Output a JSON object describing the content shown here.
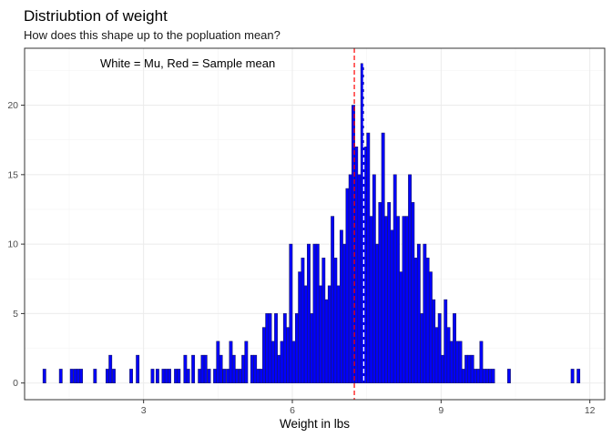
{
  "colors": {
    "bar_fill": "#0000ff",
    "bar_outline": "#1a1a66",
    "sample_mean_line": "#ff0000",
    "mu_line": "#ffffff"
  },
  "chart_data": {
    "type": "bar",
    "title": "Distriubtion of weight",
    "subtitle": "How does this shape up to the popluation mean?",
    "xlabel": "Weight in lbs",
    "ylabel": "",
    "annotation": "White = Mu, Red = Sample mean",
    "xlim": [
      0.6,
      12.3
    ],
    "ylim": [
      -1.2,
      24.1
    ],
    "x_ticks": [
      3,
      6,
      9,
      12
    ],
    "y_ticks": [
      0,
      5,
      10,
      15,
      20
    ],
    "grid": true,
    "binwidth": 0.06,
    "sample_mean": 7.25,
    "mu": 7.44,
    "bins": [
      [
        1.0,
        1
      ],
      [
        1.33,
        1
      ],
      [
        1.55,
        1
      ],
      [
        1.62,
        1
      ],
      [
        1.68,
        1
      ],
      [
        1.74,
        1
      ],
      [
        2.02,
        1
      ],
      [
        2.27,
        1
      ],
      [
        2.33,
        2
      ],
      [
        2.4,
        1
      ],
      [
        2.75,
        1
      ],
      [
        2.88,
        2
      ],
      [
        3.18,
        1
      ],
      [
        3.28,
        1
      ],
      [
        3.4,
        1
      ],
      [
        3.46,
        1
      ],
      [
        3.52,
        1
      ],
      [
        3.65,
        1
      ],
      [
        3.71,
        1
      ],
      [
        3.84,
        2
      ],
      [
        3.9,
        1
      ],
      [
        4.0,
        2
      ],
      [
        4.13,
        1
      ],
      [
        4.19,
        2
      ],
      [
        4.25,
        2
      ],
      [
        4.32,
        1
      ],
      [
        4.44,
        1
      ],
      [
        4.5,
        3
      ],
      [
        4.56,
        2
      ],
      [
        4.63,
        1
      ],
      [
        4.7,
        1
      ],
      [
        4.76,
        3
      ],
      [
        4.82,
        2
      ],
      [
        4.88,
        1
      ],
      [
        4.95,
        1
      ],
      [
        5.01,
        2
      ],
      [
        5.07,
        3
      ],
      [
        5.19,
        2
      ],
      [
        5.25,
        2
      ],
      [
        5.31,
        1
      ],
      [
        5.37,
        1
      ],
      [
        5.43,
        4
      ],
      [
        5.49,
        5
      ],
      [
        5.55,
        5
      ],
      [
        5.61,
        3
      ],
      [
        5.67,
        5
      ],
      [
        5.73,
        2
      ],
      [
        5.79,
        3
      ],
      [
        5.85,
        5
      ],
      [
        5.91,
        4
      ],
      [
        5.97,
        10
      ],
      [
        6.03,
        3
      ],
      [
        6.09,
        5
      ],
      [
        6.15,
        8
      ],
      [
        6.21,
        9
      ],
      [
        6.27,
        7
      ],
      [
        6.33,
        10
      ],
      [
        6.39,
        5
      ],
      [
        6.45,
        10
      ],
      [
        6.51,
        10
      ],
      [
        6.57,
        7
      ],
      [
        6.63,
        9
      ],
      [
        6.69,
        6
      ],
      [
        6.75,
        7
      ],
      [
        6.81,
        12
      ],
      [
        6.87,
        9
      ],
      [
        6.93,
        7
      ],
      [
        6.99,
        11
      ],
      [
        7.05,
        10
      ],
      [
        7.11,
        14
      ],
      [
        7.17,
        15
      ],
      [
        7.23,
        20
      ],
      [
        7.29,
        17
      ],
      [
        7.35,
        15
      ],
      [
        7.41,
        23
      ],
      [
        7.47,
        17
      ],
      [
        7.53,
        18
      ],
      [
        7.59,
        12
      ],
      [
        7.65,
        15
      ],
      [
        7.71,
        10
      ],
      [
        7.77,
        13
      ],
      [
        7.83,
        18
      ],
      [
        7.89,
        12
      ],
      [
        7.95,
        13
      ],
      [
        8.01,
        11
      ],
      [
        8.07,
        15
      ],
      [
        8.13,
        12
      ],
      [
        8.19,
        8
      ],
      [
        8.25,
        12
      ],
      [
        8.31,
        12
      ],
      [
        8.37,
        15
      ],
      [
        8.43,
        13
      ],
      [
        8.49,
        9
      ],
      [
        8.55,
        10
      ],
      [
        8.61,
        5
      ],
      [
        8.67,
        10
      ],
      [
        8.73,
        9
      ],
      [
        8.79,
        8
      ],
      [
        8.85,
        6
      ],
      [
        8.91,
        4
      ],
      [
        8.97,
        5
      ],
      [
        9.03,
        2
      ],
      [
        9.09,
        6
      ],
      [
        9.15,
        4
      ],
      [
        9.21,
        3
      ],
      [
        9.27,
        5
      ],
      [
        9.33,
        3
      ],
      [
        9.39,
        3
      ],
      [
        9.45,
        1
      ],
      [
        9.51,
        2
      ],
      [
        9.57,
        2
      ],
      [
        9.63,
        2
      ],
      [
        9.69,
        1
      ],
      [
        9.75,
        1
      ],
      [
        9.81,
        3
      ],
      [
        9.87,
        1
      ],
      [
        9.93,
        1
      ],
      [
        9.99,
        1
      ],
      [
        10.05,
        1
      ],
      [
        10.37,
        1
      ],
      [
        11.65,
        1
      ],
      [
        11.77,
        1
      ]
    ]
  }
}
